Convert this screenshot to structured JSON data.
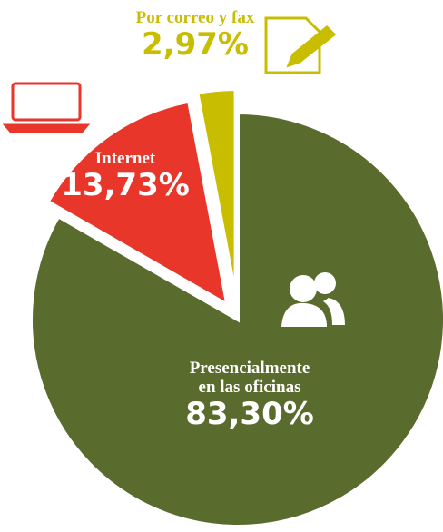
{
  "chart_data": {
    "type": "pie",
    "categories": [
      "Presencialmente en las oficinas",
      "Internet",
      "Por correo y fax"
    ],
    "values": [
      83.3,
      13.73,
      2.97
    ],
    "value_labels": [
      "83,30%",
      "13,73%",
      "2,97%"
    ],
    "colors": [
      "#5a6b2e",
      "#e8362a",
      "#c9bd00"
    ]
  }
}
